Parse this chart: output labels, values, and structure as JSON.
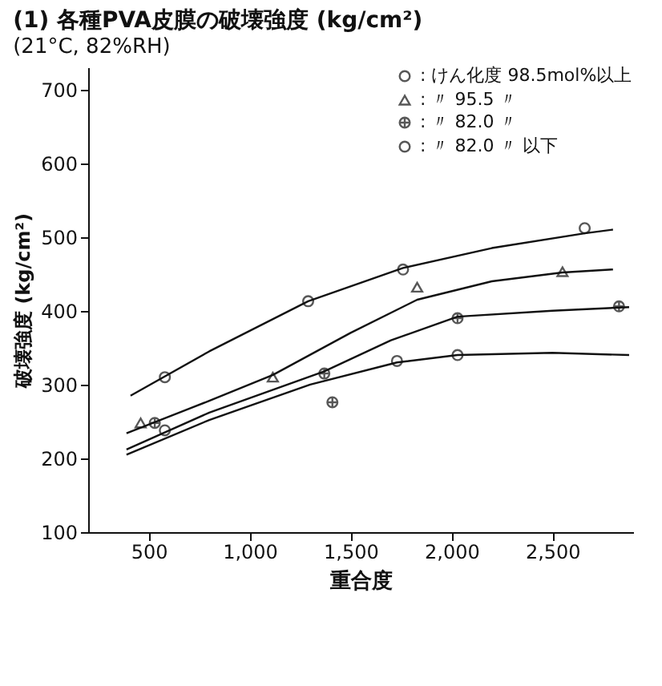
{
  "chart_data": {
    "type": "scatter",
    "title": "(1) 各種PVA皮膜の破壊強度 (kg/cm²)",
    "subtitle": "(21°C, 82%RH)",
    "xlabel": "重合度",
    "ylabel": "破壊強度 (kg/cm²)",
    "xlim": [
      200,
      2900
    ],
    "ylim": [
      100,
      730
    ],
    "xticks": [
      500,
      {
        "value": 1000,
        "label": "1,000"
      },
      {
        "value": 1500,
        "label": "1,500"
      },
      {
        "value": 2000,
        "label": "2,000"
      },
      {
        "value": 2500,
        "label": "2,500"
      }
    ],
    "yticks": [
      100,
      200,
      300,
      400,
      500,
      600,
      700
    ],
    "grid": false,
    "legend": "top right",
    "series": [
      {
        "name": ": けん化度 98.5mol%以上",
        "marker": "circle",
        "color": "#111111",
        "x": [
          580,
          1290,
          1760,
          2660
        ],
        "values": [
          310,
          413,
          456,
          512
        ]
      },
      {
        "name": ":  〃  95.5 〃",
        "marker": "triangle",
        "color": "#111111",
        "x": [
          460,
          1115,
          1830,
          2550
        ],
        "values": [
          248,
          310,
          432,
          453
        ]
      },
      {
        "name": ":  〃  82.0 〃",
        "marker": "cross",
        "color": "#111111",
        "x": [
          530,
          1370,
          1410,
          2030,
          2830
        ],
        "values": [
          248,
          315,
          276,
          390,
          406
        ]
      },
      {
        "name": ":  〃  82.0 〃 以下",
        "marker": "circle",
        "color": "#111111",
        "x": [
          580,
          1730,
          2030
        ],
        "values": [
          238,
          332,
          340
        ]
      },
      {
        "type": "line",
        "color": "#111111",
        "x": [
          410,
          800,
          1290,
          1760,
          2200,
          2660,
          2800
        ],
        "values": [
          285,
          345,
          413,
          458,
          485,
          505,
          510
        ]
      },
      {
        "type": "line",
        "color": "#111111",
        "x": [
          390,
          800,
          1115,
          1500,
          1830,
          2200,
          2550,
          2800
        ],
        "values": [
          234,
          278,
          313,
          370,
          415,
          440,
          452,
          456
        ]
      },
      {
        "type": "line",
        "color": "#111111",
        "x": [
          390,
          800,
          1370,
          1700,
          2030,
          2500,
          2880
        ],
        "values": [
          212,
          262,
          318,
          360,
          392,
          400,
          405
        ]
      },
      {
        "type": "line",
        "color": "#111111",
        "x": [
          390,
          800,
          1300,
          1730,
          2030,
          2500,
          2880
        ],
        "values": [
          205,
          252,
          300,
          330,
          340,
          343,
          340
        ]
      }
    ]
  }
}
